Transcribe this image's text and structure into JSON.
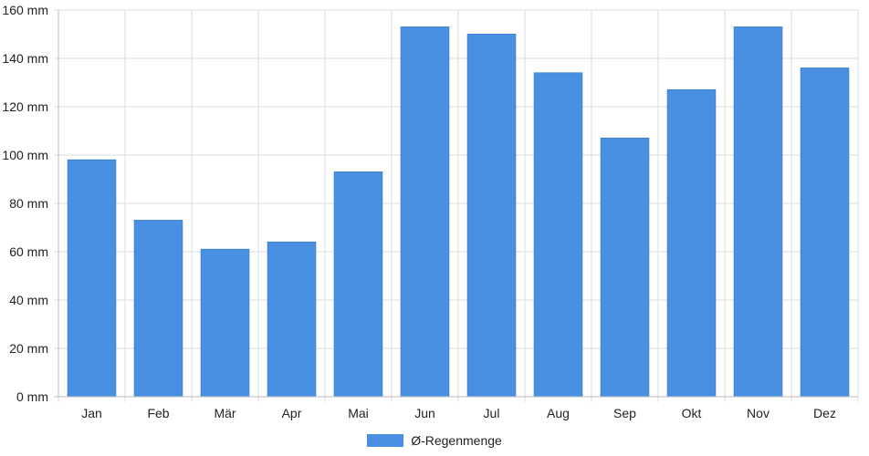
{
  "chart_data": {
    "type": "bar",
    "categories": [
      "Jan",
      "Feb",
      "Mär",
      "Apr",
      "Mai",
      "Jun",
      "Jul",
      "Aug",
      "Sep",
      "Okt",
      "Nov",
      "Dez"
    ],
    "series": [
      {
        "name": "Ø-Regenmenge",
        "values": [
          98,
          73,
          61,
          64,
          93,
          153,
          150,
          134,
          107,
          127,
          153,
          136
        ],
        "color": "#4a90e2"
      }
    ],
    "ylim": [
      0,
      160
    ],
    "yticks": [
      0,
      20,
      40,
      60,
      80,
      100,
      120,
      140,
      160
    ],
    "y_tick_labels": [
      "0 mm",
      "20 mm",
      "40 mm",
      "60 mm",
      "80 mm",
      "100 mm",
      "120 mm",
      "140 mm",
      "160 mm"
    ],
    "grid": true,
    "legend_position": "bottom"
  }
}
